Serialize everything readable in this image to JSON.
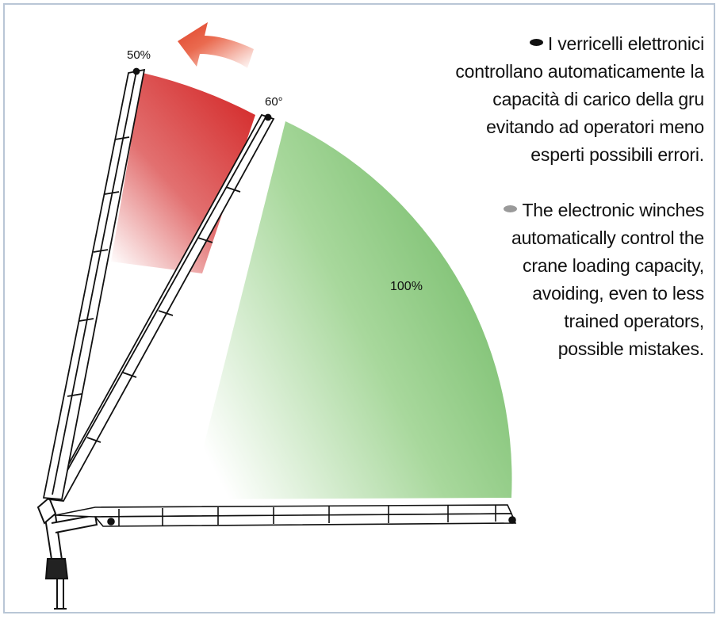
{
  "labels": {
    "max_extension_percent": "50%",
    "angle": "60°",
    "safe_zone_percent": "100%"
  },
  "text_it": {
    "bullet_color": "#111111",
    "lines": [
      "I verricelli elettronici",
      "controllano automaticamente la",
      "capacità di carico della gru",
      "evitando ad operatori meno",
      "esperti possibili errori."
    ]
  },
  "text_en": {
    "bullet_color": "#9a9a9a",
    "lines": [
      "The electronic winches",
      "automatically control the",
      "crane loading capacity,",
      "avoiding, even to less",
      "trained operators,",
      "possible mistakes."
    ]
  },
  "colors": {
    "reduced_zone": "#d42a2a",
    "full_zone": "#7cc16f",
    "arrow": "#e0432a"
  }
}
